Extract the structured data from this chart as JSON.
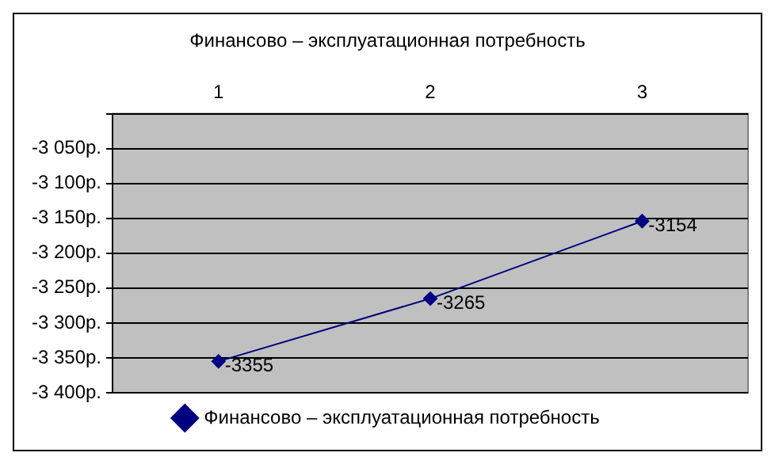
{
  "chart_data": {
    "type": "line",
    "title": "Финансово – эксплуатационная потребность",
    "categories": [
      "1",
      "2",
      "3"
    ],
    "series": [
      {
        "name": "Финансово – эксплуатационная потребность",
        "color": "#000080",
        "values": [
          -3355,
          -3265,
          -3154
        ]
      }
    ],
    "ylim": [
      -3400,
      -3000
    ],
    "yticks": [
      {
        "value": -3400,
        "label": "-3 400р."
      },
      {
        "value": -3350,
        "label": "-3 350р."
      },
      {
        "value": -3300,
        "label": "-3 300р."
      },
      {
        "value": -3250,
        "label": "-3 250р."
      },
      {
        "value": -3200,
        "label": "-3 200р."
      },
      {
        "value": -3150,
        "label": "-3 150р."
      },
      {
        "value": -3100,
        "label": "-3 100р."
      },
      {
        "value": -3050,
        "label": "-3 050р."
      },
      {
        "value": -3000,
        "label": null
      }
    ],
    "grid": "y",
    "legend": "bottom",
    "marker": "diamond",
    "line_style": "solid",
    "data_labels": true
  }
}
